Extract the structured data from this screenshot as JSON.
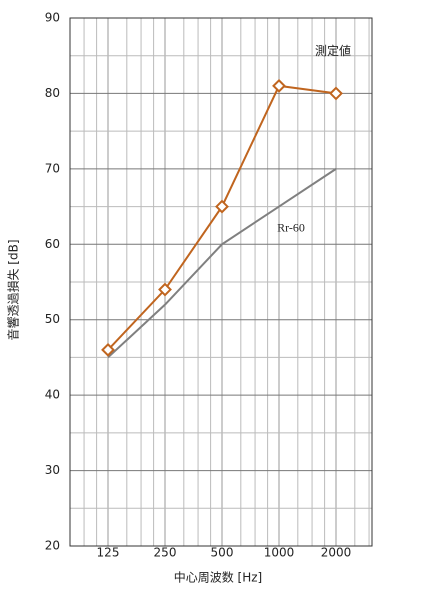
{
  "chart_data": {
    "type": "line",
    "x_label": "中心周波数 [Hz]",
    "y_label": "音響透過損失 [dB]",
    "categories": [
      "125",
      "250",
      "500",
      "1000",
      "2000"
    ],
    "series": [
      {
        "name": "測定値",
        "color": "#c0651f",
        "marker": "diamond",
        "values": [
          46,
          54,
          65,
          81,
          80
        ]
      },
      {
        "name": "Rr-60",
        "color": "#808080",
        "marker": "none",
        "values": [
          45,
          52,
          60,
          65,
          70
        ]
      }
    ],
    "ylim": [
      20,
      90
    ],
    "yticks": [
      20,
      30,
      40,
      50,
      60,
      70,
      80,
      90
    ],
    "grid": true
  }
}
